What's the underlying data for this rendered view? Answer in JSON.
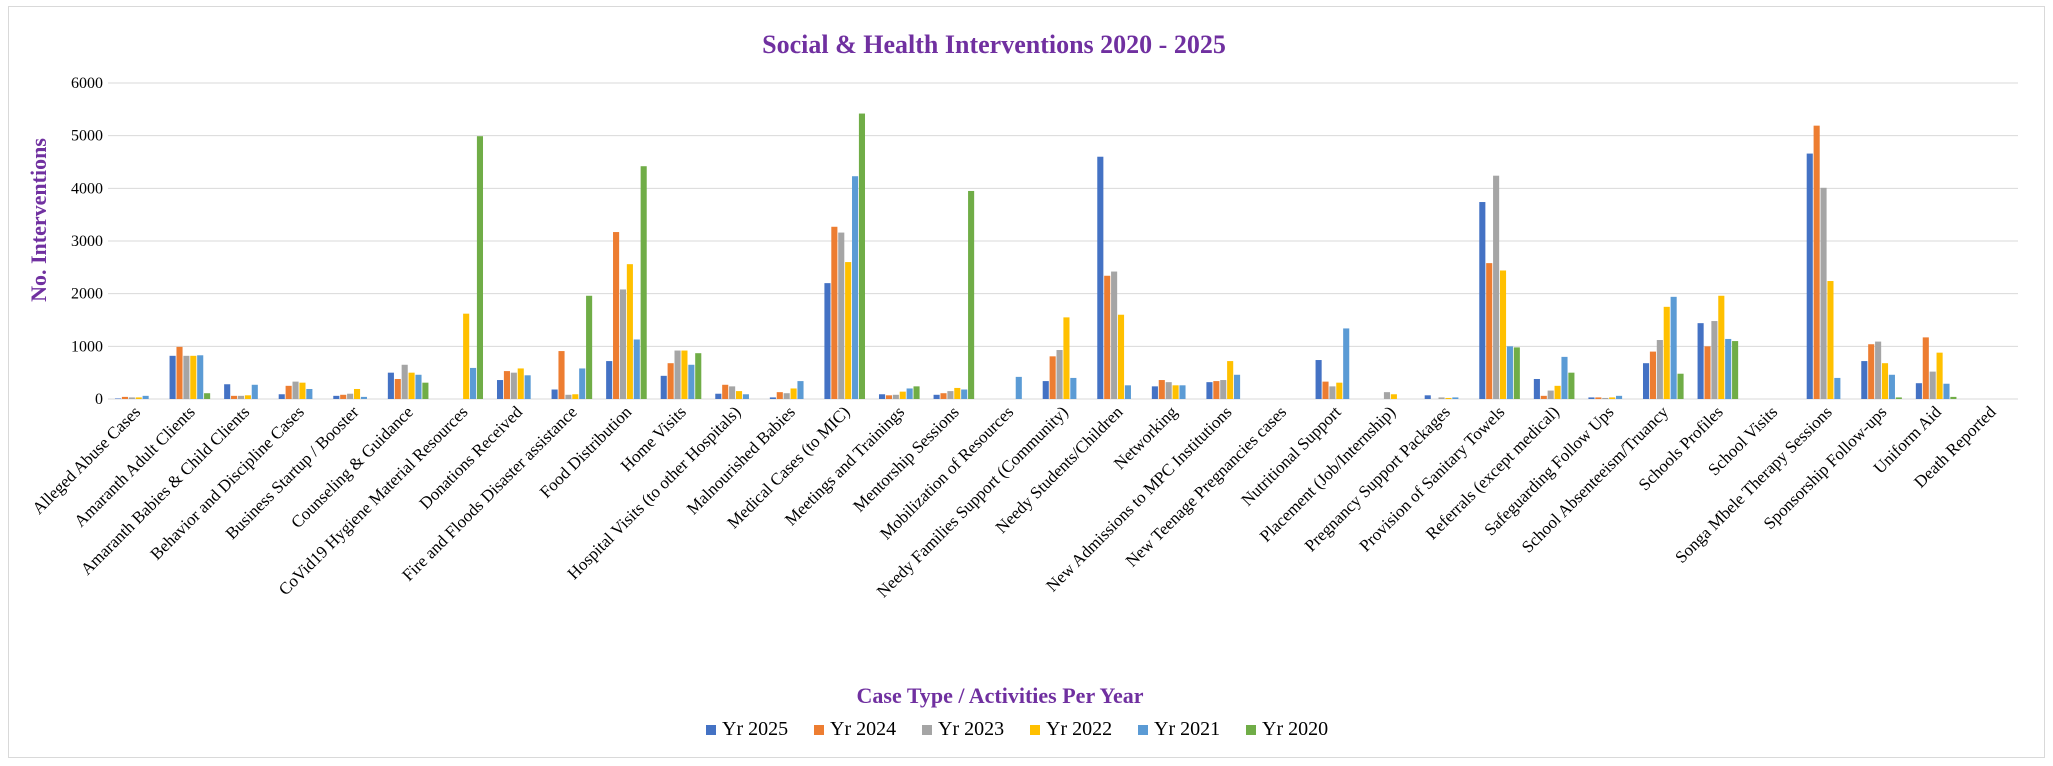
{
  "chart_data": {
    "type": "bar",
    "title": "Social & Health Interventions 2020 - 2025",
    "xlabel": "Case Type / Activities Per Year",
    "ylabel": "No. Interventions",
    "ylim": [
      0,
      6000
    ],
    "yticks": [
      "0",
      "1000",
      "2000",
      "3000",
      "4000",
      "5000",
      "6000"
    ],
    "grid": true,
    "legend_position": "bottom",
    "categories": [
      "Alleged Abuse Cases",
      "Amaranth Adult Clients",
      "Amaranth Babies & Child Clients",
      "Behavior and Discipline Cases",
      "Business Startup / Booster",
      "Counseling & Guidance",
      "CoVid19 Hygiene Material Resources",
      "Donations Received",
      "Fire and Floods Disaster assistance",
      "Food Distribution",
      "Home Visits",
      "Hospital Visits (to other Hospitals)",
      "Malnourished Babies",
      "Medical Cases (to MIC)",
      "Meetings and Trainings",
      "Mentorship Sessions",
      "Mobilization of Resources",
      "Needy Families  Support (Community)",
      "Needy Students/Children",
      "Networking",
      "New Admissions to MPC Institutions",
      "New Teenage Pregnancies cases",
      "Nutritional Support",
      "Placement (Job/Internship)",
      "Pregnancy Support Packages",
      "Provision of Sanitary Towels",
      "Referrals (except medical)",
      "Safeguarding Follow Ups",
      "School Absenteeism/Truancy",
      "Schools Profiles",
      "School  Visits",
      "Songa Mbele Therapy Sessions",
      "Sponsorship Follow-ups",
      "Uniform Aid",
      "Death Reported"
    ],
    "series": [
      {
        "name": "Yr 2025",
        "color": "#4472c4",
        "values": [
          10,
          820,
          280,
          90,
          60,
          500,
          0,
          360,
          180,
          720,
          440,
          100,
          30,
          2200,
          90,
          80,
          0,
          340,
          4600,
          240,
          320,
          0,
          740,
          0,
          70,
          3740,
          380,
          30,
          680,
          1440,
          0,
          4660,
          720,
          300,
          0
        ]
      },
      {
        "name": "Yr 2024",
        "color": "#ed7d31",
        "values": [
          40,
          990,
          60,
          250,
          80,
          380,
          0,
          530,
          910,
          3170,
          680,
          270,
          130,
          3270,
          70,
          110,
          0,
          810,
          2340,
          360,
          340,
          0,
          330,
          0,
          0,
          2580,
          60,
          30,
          900,
          1000,
          0,
          5190,
          1040,
          1170,
          0
        ]
      },
      {
        "name": "Yr 2023",
        "color": "#a5a5a5",
        "values": [
          30,
          820,
          60,
          330,
          100,
          650,
          0,
          500,
          80,
          2080,
          920,
          240,
          110,
          3160,
          80,
          150,
          0,
          930,
          2420,
          320,
          360,
          0,
          240,
          130,
          30,
          4240,
          160,
          20,
          1120,
          1480,
          0,
          4010,
          1090,
          520,
          0
        ]
      },
      {
        "name": "Yr 2022",
        "color": "#ffc000",
        "values": [
          30,
          820,
          70,
          310,
          190,
          500,
          1620,
          580,
          90,
          2560,
          920,
          150,
          200,
          2600,
          140,
          210,
          0,
          1550,
          1600,
          260,
          720,
          0,
          310,
          90,
          20,
          2440,
          250,
          30,
          1750,
          1960,
          0,
          2240,
          680,
          880,
          0
        ]
      },
      {
        "name": "Yr 2021",
        "color": "#5b9bd5",
        "values": [
          60,
          830,
          270,
          190,
          40,
          460,
          590,
          450,
          580,
          1130,
          650,
          90,
          340,
          4230,
          200,
          180,
          420,
          400,
          260,
          260,
          460,
          0,
          1340,
          0,
          30,
          1000,
          800,
          60,
          1940,
          1140,
          0,
          400,
          460,
          290,
          0
        ]
      },
      {
        "name": "Yr 2020",
        "color": "#70ad47",
        "values": [
          0,
          110,
          0,
          0,
          0,
          310,
          4990,
          0,
          1960,
          4420,
          870,
          0,
          0,
          5420,
          240,
          3950,
          0,
          0,
          0,
          0,
          0,
          0,
          0,
          0,
          0,
          980,
          500,
          0,
          480,
          1100,
          0,
          0,
          30,
          40,
          0
        ]
      }
    ]
  }
}
